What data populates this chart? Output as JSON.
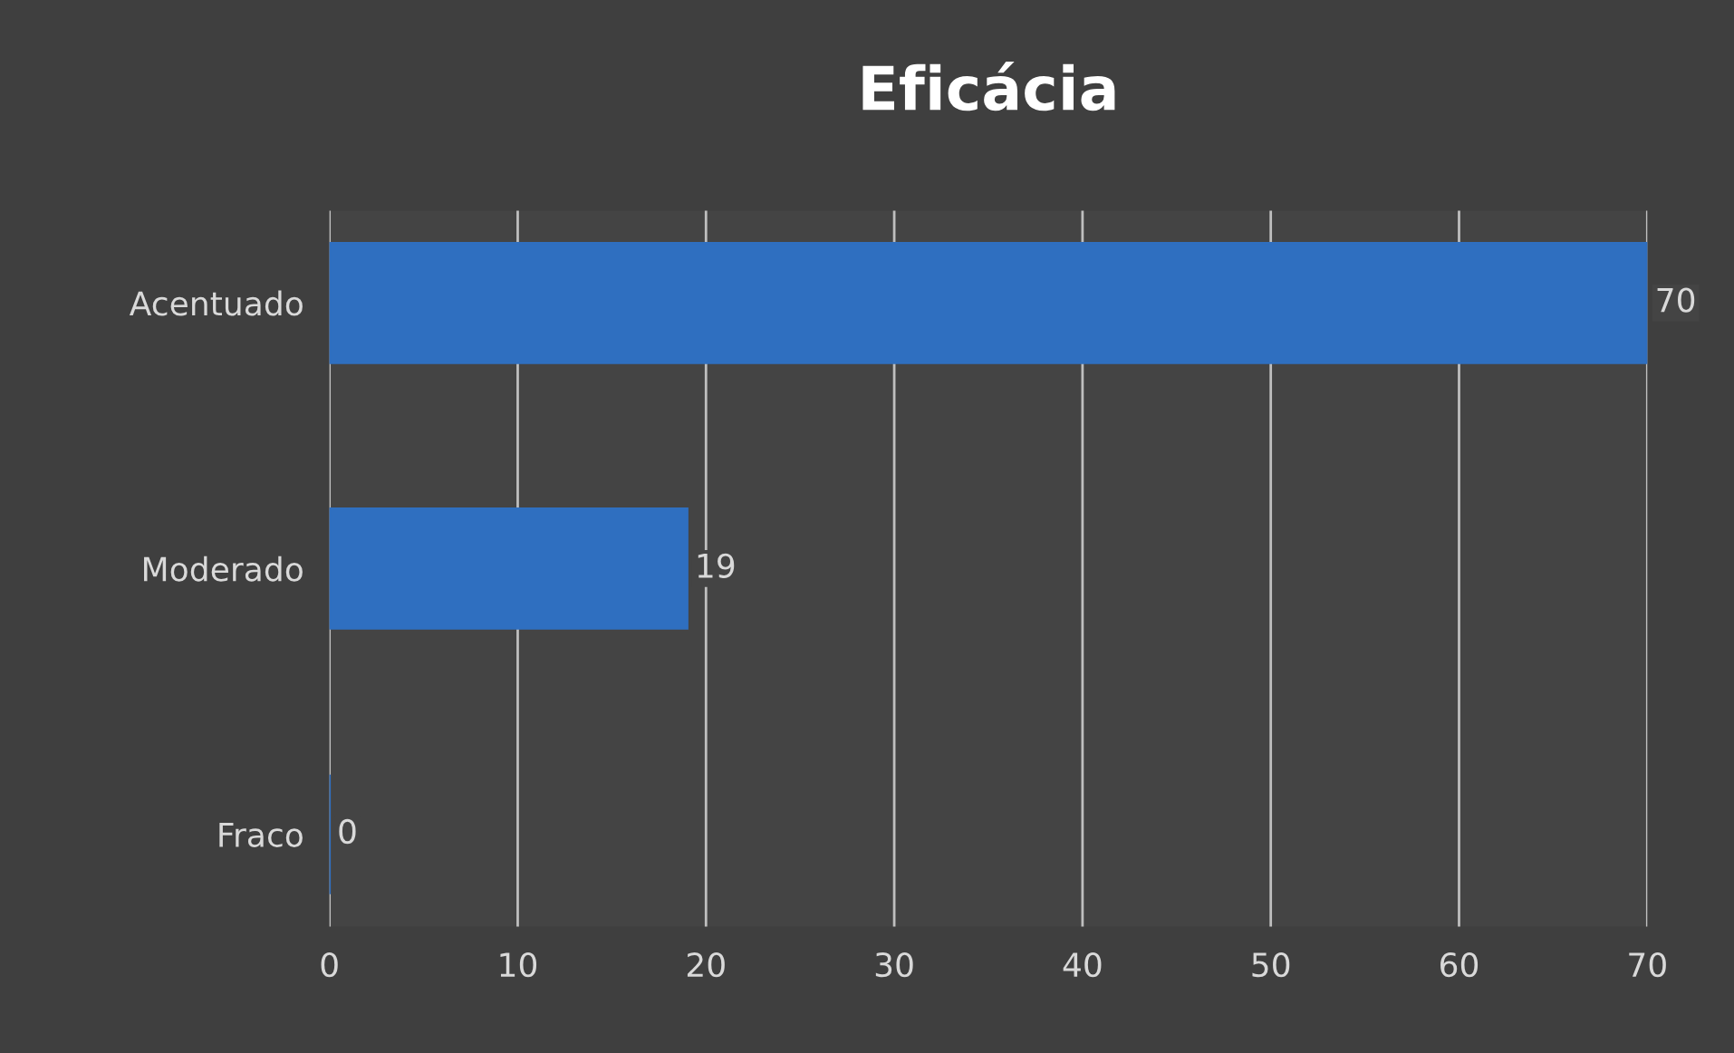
{
  "chart_data": {
    "type": "bar",
    "orientation": "horizontal",
    "title": "Eficácia",
    "categories": [
      "Acentuado",
      "Moderado",
      "Fraco"
    ],
    "values": [
      70,
      19,
      0
    ],
    "color": "#2f6fc0",
    "xlim": [
      0,
      70
    ],
    "xticks": [
      0,
      10,
      20,
      30,
      40,
      50,
      60,
      70
    ],
    "grid": "x",
    "data_labels": true
  }
}
